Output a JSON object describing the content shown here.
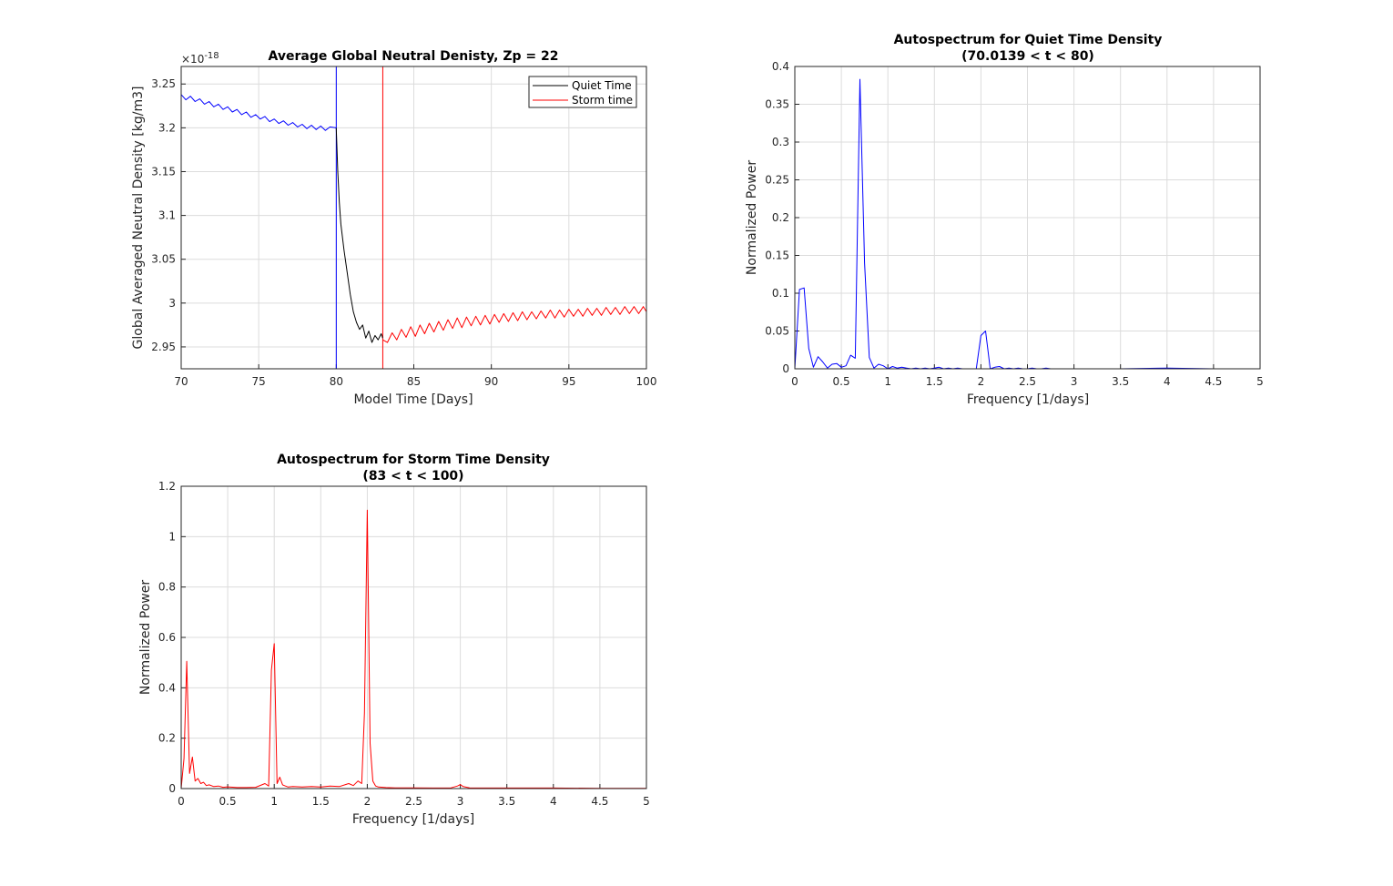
{
  "chart_data": [
    {
      "type": "line",
      "title": "Average Global Neutral Denisty, Zp = 22",
      "xlabel": "Model Time [Days]",
      "ylabel": "Global Averaged Neutral Density [kg/m3]",
      "exponent_label": "×10",
      "exponent_power": "-18",
      "xlim": [
        70,
        100
      ],
      "ylim": [
        2.925,
        3.27
      ],
      "xticks": [
        "70",
        "75",
        "80",
        "85",
        "90",
        "95",
        "100"
      ],
      "yticks": [
        "2.95",
        "3",
        "3.05",
        "3.1",
        "3.15",
        "3.2",
        "3.25"
      ],
      "grid": true,
      "legend_position": "top-right",
      "vlines": [
        {
          "x": 80,
          "color": "#0000ff"
        },
        {
          "x": 83,
          "color": "#ff0000"
        },
        {
          "x": 100,
          "color": "#ff0000"
        }
      ],
      "series": [
        {
          "name": "",
          "color": "#0000ff",
          "description": "quiet period segment",
          "x": [
            70,
            70.3,
            70.6,
            70.9,
            71.2,
            71.5,
            71.8,
            72.1,
            72.4,
            72.7,
            73.0,
            73.3,
            73.6,
            73.9,
            74.2,
            74.5,
            74.8,
            75.1,
            75.4,
            75.7,
            76.0,
            76.3,
            76.6,
            76.9,
            77.2,
            77.5,
            77.8,
            78.1,
            78.4,
            78.7,
            79.0,
            79.3,
            79.6,
            80.0
          ],
          "y": [
            3.238,
            3.232,
            3.236,
            3.23,
            3.233,
            3.227,
            3.23,
            3.224,
            3.227,
            3.221,
            3.224,
            3.218,
            3.221,
            3.215,
            3.218,
            3.212,
            3.215,
            3.21,
            3.213,
            3.207,
            3.21,
            3.205,
            3.208,
            3.203,
            3.206,
            3.201,
            3.204,
            3.199,
            3.203,
            3.198,
            3.202,
            3.197,
            3.201,
            3.2
          ]
        },
        {
          "name": "Quiet Time",
          "color": "#000000",
          "x": [
            80.0,
            80.1,
            80.2,
            80.3,
            80.5,
            80.7,
            80.9,
            81.1,
            81.3,
            81.5,
            81.7,
            81.9,
            82.1,
            82.3,
            82.5,
            82.7,
            82.9,
            83.0
          ],
          "y": [
            3.2,
            3.15,
            3.115,
            3.09,
            3.06,
            3.035,
            3.01,
            2.99,
            2.978,
            2.97,
            2.975,
            2.96,
            2.968,
            2.955,
            2.963,
            2.958,
            2.965,
            2.96
          ]
        },
        {
          "name": "Storm time",
          "color": "#ff0000",
          "x": [
            83.0,
            83.3,
            83.6,
            83.9,
            84.2,
            84.5,
            84.8,
            85.1,
            85.4,
            85.7,
            86.0,
            86.3,
            86.6,
            86.9,
            87.2,
            87.5,
            87.8,
            88.1,
            88.4,
            88.7,
            89.0,
            89.3,
            89.6,
            89.9,
            90.2,
            90.5,
            90.8,
            91.1,
            91.4,
            91.7,
            92.0,
            92.3,
            92.6,
            92.9,
            93.2,
            93.5,
            93.8,
            94.1,
            94.4,
            94.7,
            95.0,
            95.3,
            95.6,
            95.9,
            96.2,
            96.5,
            96.8,
            97.1,
            97.4,
            97.7,
            98.0,
            98.3,
            98.6,
            98.9,
            99.2,
            99.5,
            99.8,
            100.0
          ],
          "y": [
            2.958,
            2.955,
            2.966,
            2.958,
            2.97,
            2.961,
            2.973,
            2.962,
            2.975,
            2.965,
            2.977,
            2.967,
            2.979,
            2.969,
            2.981,
            2.971,
            2.983,
            2.972,
            2.984,
            2.974,
            2.985,
            2.975,
            2.986,
            2.976,
            2.987,
            2.978,
            2.988,
            2.979,
            2.989,
            2.98,
            2.99,
            2.981,
            2.99,
            2.982,
            2.991,
            2.983,
            2.992,
            2.983,
            2.992,
            2.984,
            2.993,
            2.985,
            2.993,
            2.985,
            2.994,
            2.986,
            2.994,
            2.986,
            2.995,
            2.987,
            2.995,
            2.987,
            2.996,
            2.988,
            2.996,
            2.988,
            2.996,
            2.99
          ]
        }
      ]
    },
    {
      "type": "line",
      "title": "Autospectrum for Quiet Time Density",
      "subtitle": "(70.0139 < t < 80)",
      "xlabel": "Frequency [1/days]",
      "ylabel": "Normalized Power",
      "xlim": [
        0,
        5
      ],
      "ylim": [
        0,
        0.4
      ],
      "xticks": [
        "0",
        "0.5",
        "1",
        "1.5",
        "2",
        "2.5",
        "3",
        "3.5",
        "4",
        "4.5",
        "5"
      ],
      "yticks": [
        "0",
        "0.05",
        "0.1",
        "0.15",
        "0.2",
        "0.25",
        "0.3",
        "0.35",
        "0.4"
      ],
      "grid": true,
      "series": [
        {
          "name": "",
          "color": "#0000ff",
          "x": [
            0,
            0.05,
            0.1,
            0.15,
            0.2,
            0.25,
            0.3,
            0.35,
            0.4,
            0.45,
            0.5,
            0.55,
            0.6,
            0.65,
            0.7,
            0.75,
            0.8,
            0.85,
            0.9,
            0.95,
            1.0,
            1.05,
            1.1,
            1.15,
            1.2,
            1.25,
            1.3,
            1.35,
            1.4,
            1.45,
            1.5,
            1.55,
            1.6,
            1.65,
            1.7,
            1.75,
            1.8,
            1.85,
            1.9,
            1.95,
            2.0,
            2.05,
            2.1,
            2.15,
            2.2,
            2.25,
            2.3,
            2.35,
            2.4,
            2.45,
            2.5,
            2.55,
            2.6,
            2.65,
            2.7,
            2.75,
            2.8,
            3.0,
            3.5,
            4.0,
            4.5,
            5.0
          ],
          "y": [
            0,
            0.105,
            0.107,
            0.027,
            0.002,
            0.016,
            0.009,
            0.001,
            0.006,
            0.007,
            0.002,
            0.004,
            0.018,
            0.014,
            0.383,
            0.14,
            0.015,
            0.001,
            0.006,
            0.004,
            0.0,
            0.003,
            0.001,
            0.002,
            0.001,
            0.0,
            0.001,
            0.0,
            0.001,
            0.0,
            0.001,
            0.002,
            0.0,
            0.001,
            0.0,
            0.001,
            0.0,
            0.0,
            0.0,
            0.0,
            0.044,
            0.05,
            0.0,
            0.002,
            0.003,
            0.0,
            0.001,
            0.0,
            0.001,
            0.0,
            0.0,
            0.001,
            0.0,
            0.0,
            0.001,
            0.0,
            0.0,
            0.0,
            0.0,
            0.001,
            0.0,
            0.0
          ]
        }
      ]
    },
    {
      "type": "line",
      "title": "Autospectrum for Storm Time Density",
      "subtitle": "(83 < t < 100)",
      "xlabel": "Frequency [1/days]",
      "ylabel": "Normalized Power",
      "xlim": [
        0,
        5
      ],
      "ylim": [
        0,
        1.2
      ],
      "xticks": [
        "0",
        "0.5",
        "1",
        "1.5",
        "2",
        "2.5",
        "3",
        "3.5",
        "4",
        "4.5",
        "5"
      ],
      "yticks": [
        "0",
        "0.2",
        "0.4",
        "0.6",
        "0.8",
        "1",
        "1.2"
      ],
      "grid": true,
      "series": [
        {
          "name": "",
          "color": "#ff0000",
          "x": [
            0,
            0.03,
            0.06,
            0.09,
            0.12,
            0.15,
            0.18,
            0.21,
            0.24,
            0.27,
            0.3,
            0.35,
            0.4,
            0.45,
            0.5,
            0.6,
            0.7,
            0.8,
            0.9,
            0.94,
            0.97,
            1.0,
            1.03,
            1.06,
            1.09,
            1.12,
            1.15,
            1.2,
            1.3,
            1.4,
            1.5,
            1.6,
            1.7,
            1.8,
            1.85,
            1.9,
            1.94,
            1.97,
            2.0,
            2.03,
            2.06,
            2.09,
            2.12,
            2.2,
            2.3,
            2.5,
            2.7,
            2.9,
            2.97,
            3.0,
            3.03,
            3.1,
            3.3,
            3.5,
            4.0,
            4.5,
            5.0
          ],
          "y": [
            0,
            0.12,
            0.505,
            0.06,
            0.125,
            0.03,
            0.04,
            0.02,
            0.025,
            0.012,
            0.015,
            0.008,
            0.01,
            0.005,
            0.007,
            0.004,
            0.004,
            0.005,
            0.02,
            0.01,
            0.47,
            0.575,
            0.02,
            0.045,
            0.015,
            0.01,
            0.006,
            0.008,
            0.006,
            0.008,
            0.006,
            0.01,
            0.008,
            0.02,
            0.012,
            0.03,
            0.02,
            0.3,
            1.105,
            0.18,
            0.03,
            0.01,
            0.006,
            0.004,
            0.003,
            0.003,
            0.002,
            0.003,
            0.01,
            0.016,
            0.008,
            0.003,
            0.002,
            0.002,
            0.002,
            0.001,
            0.001
          ]
        }
      ]
    }
  ]
}
